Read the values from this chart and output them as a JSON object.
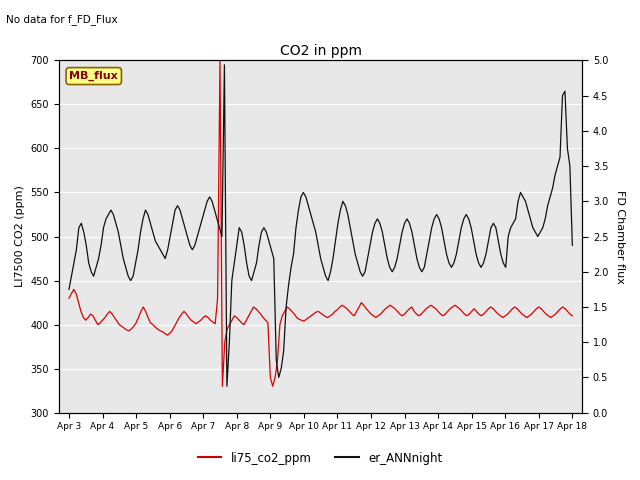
{
  "title": "CO2 in ppm",
  "ylabel_left": "LI7500 CO2 (ppm)",
  "ylabel_right": "FD Chamber flux",
  "ylim_left": [
    300,
    700
  ],
  "ylim_right": [
    0.0,
    5.0
  ],
  "yticks_left": [
    300,
    350,
    400,
    450,
    500,
    550,
    600,
    650,
    700
  ],
  "yticks_right": [
    0.0,
    0.5,
    1.0,
    1.5,
    2.0,
    2.5,
    3.0,
    3.5,
    4.0,
    4.5,
    5.0
  ],
  "xticklabels": [
    "Apr 3",
    "Apr 4",
    "Apr 5",
    "Apr 6",
    "Apr 7",
    "Apr 8",
    "Apr 9",
    "Apr 10",
    "Apr 11",
    "Apr 12",
    "Apr 13",
    "Apr 14",
    "Apr 15",
    "Apr 16",
    "Apr 17",
    "Apr 18"
  ],
  "no_data_text": "No data for f_FD_Flux",
  "mb_flux_label": "MB_flux",
  "legend_labels": [
    "li75_co2_ppm",
    "er_ANNnight"
  ],
  "legend_colors": [
    "#cc0000",
    "#111111"
  ],
  "bg_color": "#e8e8e8",
  "fig_bg_color": "#ffffff",
  "red_line_color": "#dd0000",
  "black_line_color": "#111111",
  "red_y": [
    430,
    435,
    440,
    435,
    425,
    415,
    408,
    405,
    408,
    412,
    410,
    405,
    400,
    402,
    405,
    408,
    412,
    415,
    412,
    408,
    404,
    400,
    398,
    396,
    394,
    393,
    395,
    398,
    402,
    408,
    415,
    420,
    415,
    408,
    402,
    400,
    397,
    395,
    393,
    392,
    390,
    388,
    390,
    393,
    398,
    403,
    408,
    412,
    415,
    412,
    408,
    405,
    403,
    401,
    403,
    405,
    408,
    410,
    408,
    405,
    403,
    401,
    430,
    700,
    330,
    380,
    395,
    400,
    405,
    410,
    408,
    405,
    402,
    400,
    405,
    410,
    415,
    420,
    418,
    415,
    412,
    408,
    405,
    402,
    340,
    330,
    340,
    360,
    400,
    410,
    415,
    420,
    418,
    415,
    412,
    408,
    406,
    405,
    404,
    406,
    408,
    410,
    412,
    414,
    415,
    413,
    411,
    409,
    408,
    410,
    412,
    415,
    417,
    420,
    422,
    420,
    418,
    415,
    412,
    410,
    415,
    420,
    425,
    422,
    418,
    415,
    412,
    410,
    408,
    410,
    412,
    415,
    418,
    420,
    422,
    420,
    418,
    415,
    412,
    410,
    412,
    415,
    418,
    420,
    415,
    412,
    410,
    412,
    415,
    418,
    420,
    422,
    420,
    418,
    415,
    412,
    410,
    412,
    415,
    418,
    420,
    422,
    420,
    418,
    415,
    412,
    410,
    412,
    415,
    418,
    415,
    412,
    410,
    412,
    415,
    418,
    420,
    418,
    415,
    412,
    410,
    408,
    410,
    412,
    415,
    418,
    420,
    418,
    415,
    412,
    410,
    408,
    410,
    412,
    415,
    418,
    420,
    418,
    415,
    412,
    410,
    408,
    410,
    412,
    415,
    418,
    420,
    418,
    415,
    412,
    410
  ],
  "black_y": [
    440,
    455,
    470,
    485,
    510,
    515,
    505,
    490,
    470,
    460,
    455,
    465,
    475,
    490,
    510,
    520,
    525,
    530,
    525,
    515,
    505,
    490,
    475,
    465,
    455,
    450,
    455,
    470,
    485,
    505,
    520,
    530,
    525,
    515,
    505,
    495,
    490,
    485,
    480,
    475,
    485,
    500,
    515,
    530,
    535,
    530,
    520,
    510,
    500,
    490,
    485,
    490,
    500,
    510,
    520,
    530,
    540,
    545,
    540,
    530,
    520,
    510,
    500,
    695,
    330,
    380,
    450,
    470,
    490,
    510,
    505,
    490,
    470,
    455,
    450,
    460,
    470,
    490,
    505,
    510,
    505,
    495,
    485,
    475,
    360,
    340,
    350,
    370,
    420,
    445,
    465,
    480,
    510,
    530,
    545,
    550,
    545,
    535,
    525,
    515,
    505,
    490,
    475,
    465,
    455,
    450,
    460,
    475,
    495,
    515,
    530,
    540,
    535,
    525,
    510,
    495,
    480,
    470,
    460,
    455,
    460,
    475,
    490,
    505,
    515,
    520,
    515,
    505,
    490,
    475,
    465,
    460,
    465,
    475,
    490,
    505,
    515,
    520,
    515,
    505,
    490,
    475,
    465,
    460,
    465,
    480,
    495,
    510,
    520,
    525,
    520,
    510,
    495,
    480,
    470,
    465,
    470,
    480,
    495,
    510,
    520,
    525,
    520,
    510,
    495,
    480,
    470,
    465,
    470,
    480,
    495,
    510,
    515,
    510,
    495,
    480,
    470,
    465,
    500,
    510,
    515,
    520,
    540,
    550,
    545,
    540,
    530,
    520,
    510,
    505,
    500,
    505,
    510,
    520,
    535,
    545,
    555,
    570,
    580,
    590,
    660,
    665,
    600,
    580,
    490
  ]
}
